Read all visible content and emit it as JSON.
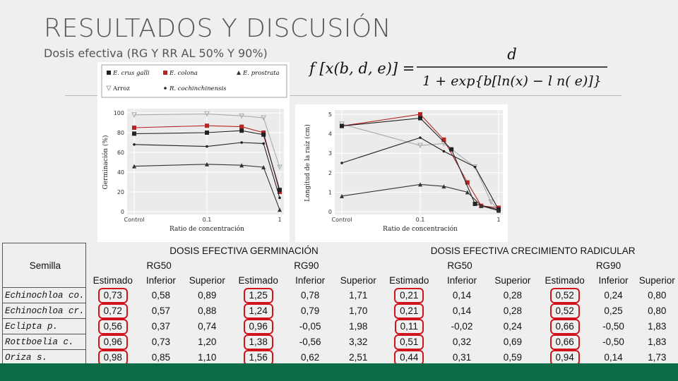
{
  "title": "RESULTADOS Y DISCUSIÓN",
  "subtitle": "Dosis efectiva (RG Y RR AL 50% Y 90%)",
  "formula": {
    "lhs": "f [x(b, d, e)] =",
    "numerator": "d",
    "denominator": "1 + exp{b[ln(x) − l n( e)]}"
  },
  "chart_data": [
    {
      "type": "scatter",
      "title": "",
      "xlabel": "Ratio de concentración",
      "ylabel": "Germinación (%)",
      "x_ticks": [
        "Control",
        "0.1",
        "1"
      ],
      "x_scale": "log",
      "ylim": [
        0,
        100
      ],
      "y_ticks": [
        0,
        20,
        40,
        60,
        80,
        100
      ],
      "legend": [
        "E. crus galli",
        "E. colona",
        "E. prostrata",
        "Arroz",
        "R. cochinchinensis"
      ],
      "legend_position": "top",
      "series": [
        {
          "name": "Arroz",
          "color": "#aaaaaa",
          "marker": "triangle-down",
          "points": [
            [
              0.01,
              98
            ],
            [
              0.1,
              99
            ],
            [
              0.3,
              97
            ],
            [
              0.6,
              95
            ],
            [
              1,
              45
            ]
          ]
        },
        {
          "name": "E. colona",
          "color": "#b52525",
          "marker": "square",
          "points": [
            [
              0.01,
              85
            ],
            [
              0.1,
              87
            ],
            [
              0.3,
              86
            ],
            [
              0.6,
              80
            ],
            [
              1,
              20
            ]
          ]
        },
        {
          "name": "E. crus galli",
          "color": "#222222",
          "marker": "square",
          "points": [
            [
              0.01,
              79
            ],
            [
              0.1,
              80
            ],
            [
              0.3,
              82
            ],
            [
              0.6,
              78
            ],
            [
              1,
              22
            ]
          ]
        },
        {
          "name": "E. prostrata",
          "color": "#333333",
          "marker": "triangle",
          "points": [
            [
              0.01,
              46
            ],
            [
              0.1,
              48
            ],
            [
              0.3,
              47
            ],
            [
              0.6,
              45
            ],
            [
              1,
              2
            ]
          ]
        },
        {
          "name": "R. cochinchinensis",
          "color": "#222222",
          "marker": "dot",
          "points": [
            [
              0.01,
              68
            ],
            [
              0.1,
              66
            ],
            [
              0.3,
              70
            ],
            [
              0.6,
              69
            ],
            [
              1,
              14
            ]
          ]
        }
      ]
    },
    {
      "type": "scatter",
      "title": "",
      "xlabel": "Ratio de concentración",
      "ylabel": "Longitud de la raíz (cm)",
      "x_ticks": [
        "Control",
        "0.1",
        "1"
      ],
      "x_scale": "log",
      "ylim": [
        0,
        5
      ],
      "y_ticks": [
        0,
        1,
        2,
        3,
        4,
        5
      ],
      "series": [
        {
          "name": "Arroz",
          "color": "#aaaaaa",
          "marker": "triangle-down",
          "points": [
            [
              0.01,
              4.5
            ],
            [
              0.1,
              3.4
            ],
            [
              0.2,
              3.5
            ],
            [
              0.5,
              2.3
            ],
            [
              0.8,
              0.5
            ],
            [
              1,
              0.1
            ]
          ]
        },
        {
          "name": "E. colona",
          "color": "#b52525",
          "marker": "square",
          "points": [
            [
              0.01,
              4.4
            ],
            [
              0.1,
              5.0
            ],
            [
              0.2,
              3.7
            ],
            [
              0.4,
              1.5
            ],
            [
              0.6,
              0.3
            ],
            [
              1,
              0.2
            ]
          ]
        },
        {
          "name": "E. crus galli",
          "color": "#222222",
          "marker": "square",
          "points": [
            [
              0.01,
              4.4
            ],
            [
              0.1,
              4.8
            ],
            [
              0.25,
              3.2
            ],
            [
              0.5,
              0.4
            ],
            [
              1,
              0.1
            ]
          ]
        },
        {
          "name": "R. cochinchinensis",
          "color": "#222222",
          "marker": "dot",
          "points": [
            [
              0.01,
              2.5
            ],
            [
              0.1,
              3.8
            ],
            [
              0.2,
              3.1
            ],
            [
              0.5,
              2.3
            ],
            [
              1,
              0.1
            ]
          ]
        },
        {
          "name": "E. prostrata",
          "color": "#333333",
          "marker": "triangle",
          "points": [
            [
              0.01,
              0.8
            ],
            [
              0.1,
              1.4
            ],
            [
              0.2,
              1.3
            ],
            [
              0.4,
              1.0
            ],
            [
              0.6,
              0.3
            ],
            [
              1,
              0.05
            ]
          ]
        }
      ]
    }
  ],
  "table": {
    "semilla_header": "Semilla",
    "group_germ": "DOSIS EFECTIVA GERMINACIÓN",
    "group_crec": "DOSIS EFECTIVA CRECIMIENTO RADICULAR",
    "rg50": "RG50",
    "rg90": "RG90",
    "col_estimado": "Estimado",
    "col_inferior": "Inferior",
    "col_superior": "Superior",
    "rows": [
      {
        "semilla": "Echinochloa co.",
        "v": [
          "0,73",
          "0,58",
          "0,89",
          "1,25",
          "0,78",
          "1,71",
          "0,21",
          "0,14",
          "0,28",
          "0,52",
          "0,24",
          "0,80"
        ]
      },
      {
        "semilla": "Echinochloa cr.",
        "v": [
          "0,72",
          "0,57",
          "0,88",
          "1,24",
          "0,79",
          "1,70",
          "0,21",
          "0,14",
          "0,28",
          "0,52",
          "0,25",
          "0,80"
        ]
      },
      {
        "semilla": "Eclipta p.",
        "v": [
          "0,56",
          "0,37",
          "0,74",
          "0,96",
          "-0,05",
          "1,98",
          "0,11",
          "-0,02",
          "0,24",
          "0,66",
          "-0,50",
          "1,83"
        ]
      },
      {
        "semilla": "Rottboelia c.",
        "v": [
          "0,96",
          "0,73",
          "1,20",
          "1,38",
          "-0,56",
          "3,32",
          "0,51",
          "0,32",
          "0,69",
          "0,66",
          "-0,50",
          "1,83"
        ]
      },
      {
        "semilla": "Oriza s.",
        "v": [
          "0,98",
          "0,85",
          "1,10",
          "1,56",
          "0,62",
          "2,51",
          "0,44",
          "0,31",
          "0,59",
          "0,94",
          "0,14",
          "1,73"
        ]
      }
    ],
    "circled": [
      [
        0,
        0
      ],
      [
        1,
        0
      ],
      [
        2,
        0
      ],
      [
        3,
        0
      ],
      [
        4,
        0
      ],
      [
        0,
        3
      ],
      [
        1,
        3
      ],
      [
        2,
        3
      ],
      [
        3,
        3
      ],
      [
        4,
        3
      ],
      [
        0,
        6
      ],
      [
        1,
        6
      ],
      [
        2,
        6
      ],
      [
        3,
        6
      ],
      [
        4,
        6
      ],
      [
        0,
        9
      ],
      [
        1,
        9
      ],
      [
        2,
        9
      ],
      [
        3,
        9
      ],
      [
        4,
        9
      ]
    ],
    "circle_color": "#d0141e"
  },
  "footer_color": "#0b6b47"
}
